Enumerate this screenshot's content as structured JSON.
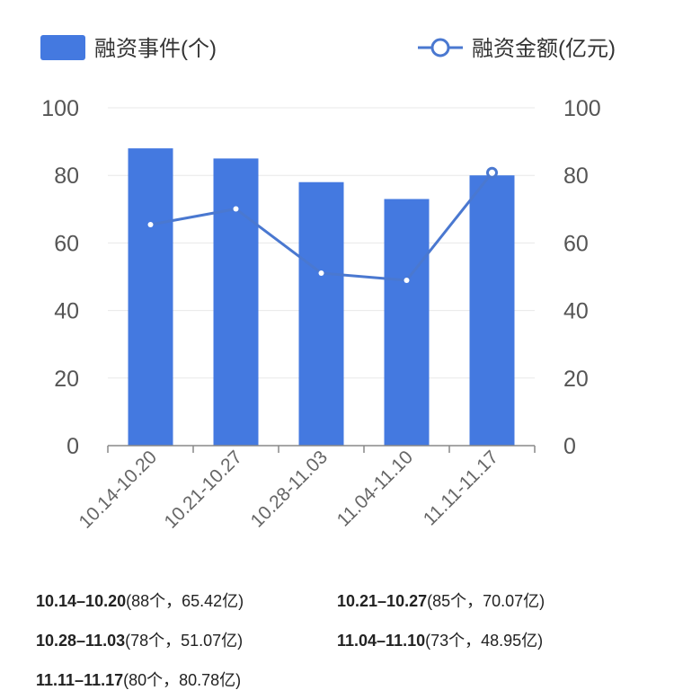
{
  "chart_data": {
    "type": "bar+line",
    "categories": [
      "10.14-10.20",
      "10.21-10.27",
      "10.28-11.03",
      "11.04-11.10",
      "11.11-11.17"
    ],
    "series": [
      {
        "name": "融资事件(个)",
        "type": "bar",
        "axis": "left",
        "values": [
          88,
          85,
          78,
          73,
          80
        ]
      },
      {
        "name": "融资金额(亿元)",
        "type": "line",
        "axis": "right",
        "values": [
          65.42,
          70.07,
          51.07,
          48.95,
          80.78
        ]
      }
    ],
    "y_left": {
      "min": 0,
      "max": 100,
      "ticks": [
        "0",
        "20",
        "40",
        "60",
        "80",
        "100"
      ]
    },
    "y_right": {
      "min": 0,
      "max": 100,
      "ticks": [
        "0",
        "20",
        "40",
        "60",
        "80",
        "100"
      ]
    },
    "grid": true,
    "legend_position": "top",
    "colors": {
      "bar": "#4479e0",
      "line": "#4a78d0"
    }
  },
  "notes": [
    {
      "range": "10.14–10.20",
      "detail": "(88个，65.42亿)"
    },
    {
      "range": "10.21–10.27",
      "detail": "(85个，70.07亿)"
    },
    {
      "range": "10.28–11.03",
      "detail": "(78个，51.07亿)"
    },
    {
      "range": "11.04–11.10",
      "detail": "(73个，48.95亿)"
    },
    {
      "range": "11.11–11.17",
      "detail": "(80个，80.78亿)"
    }
  ]
}
